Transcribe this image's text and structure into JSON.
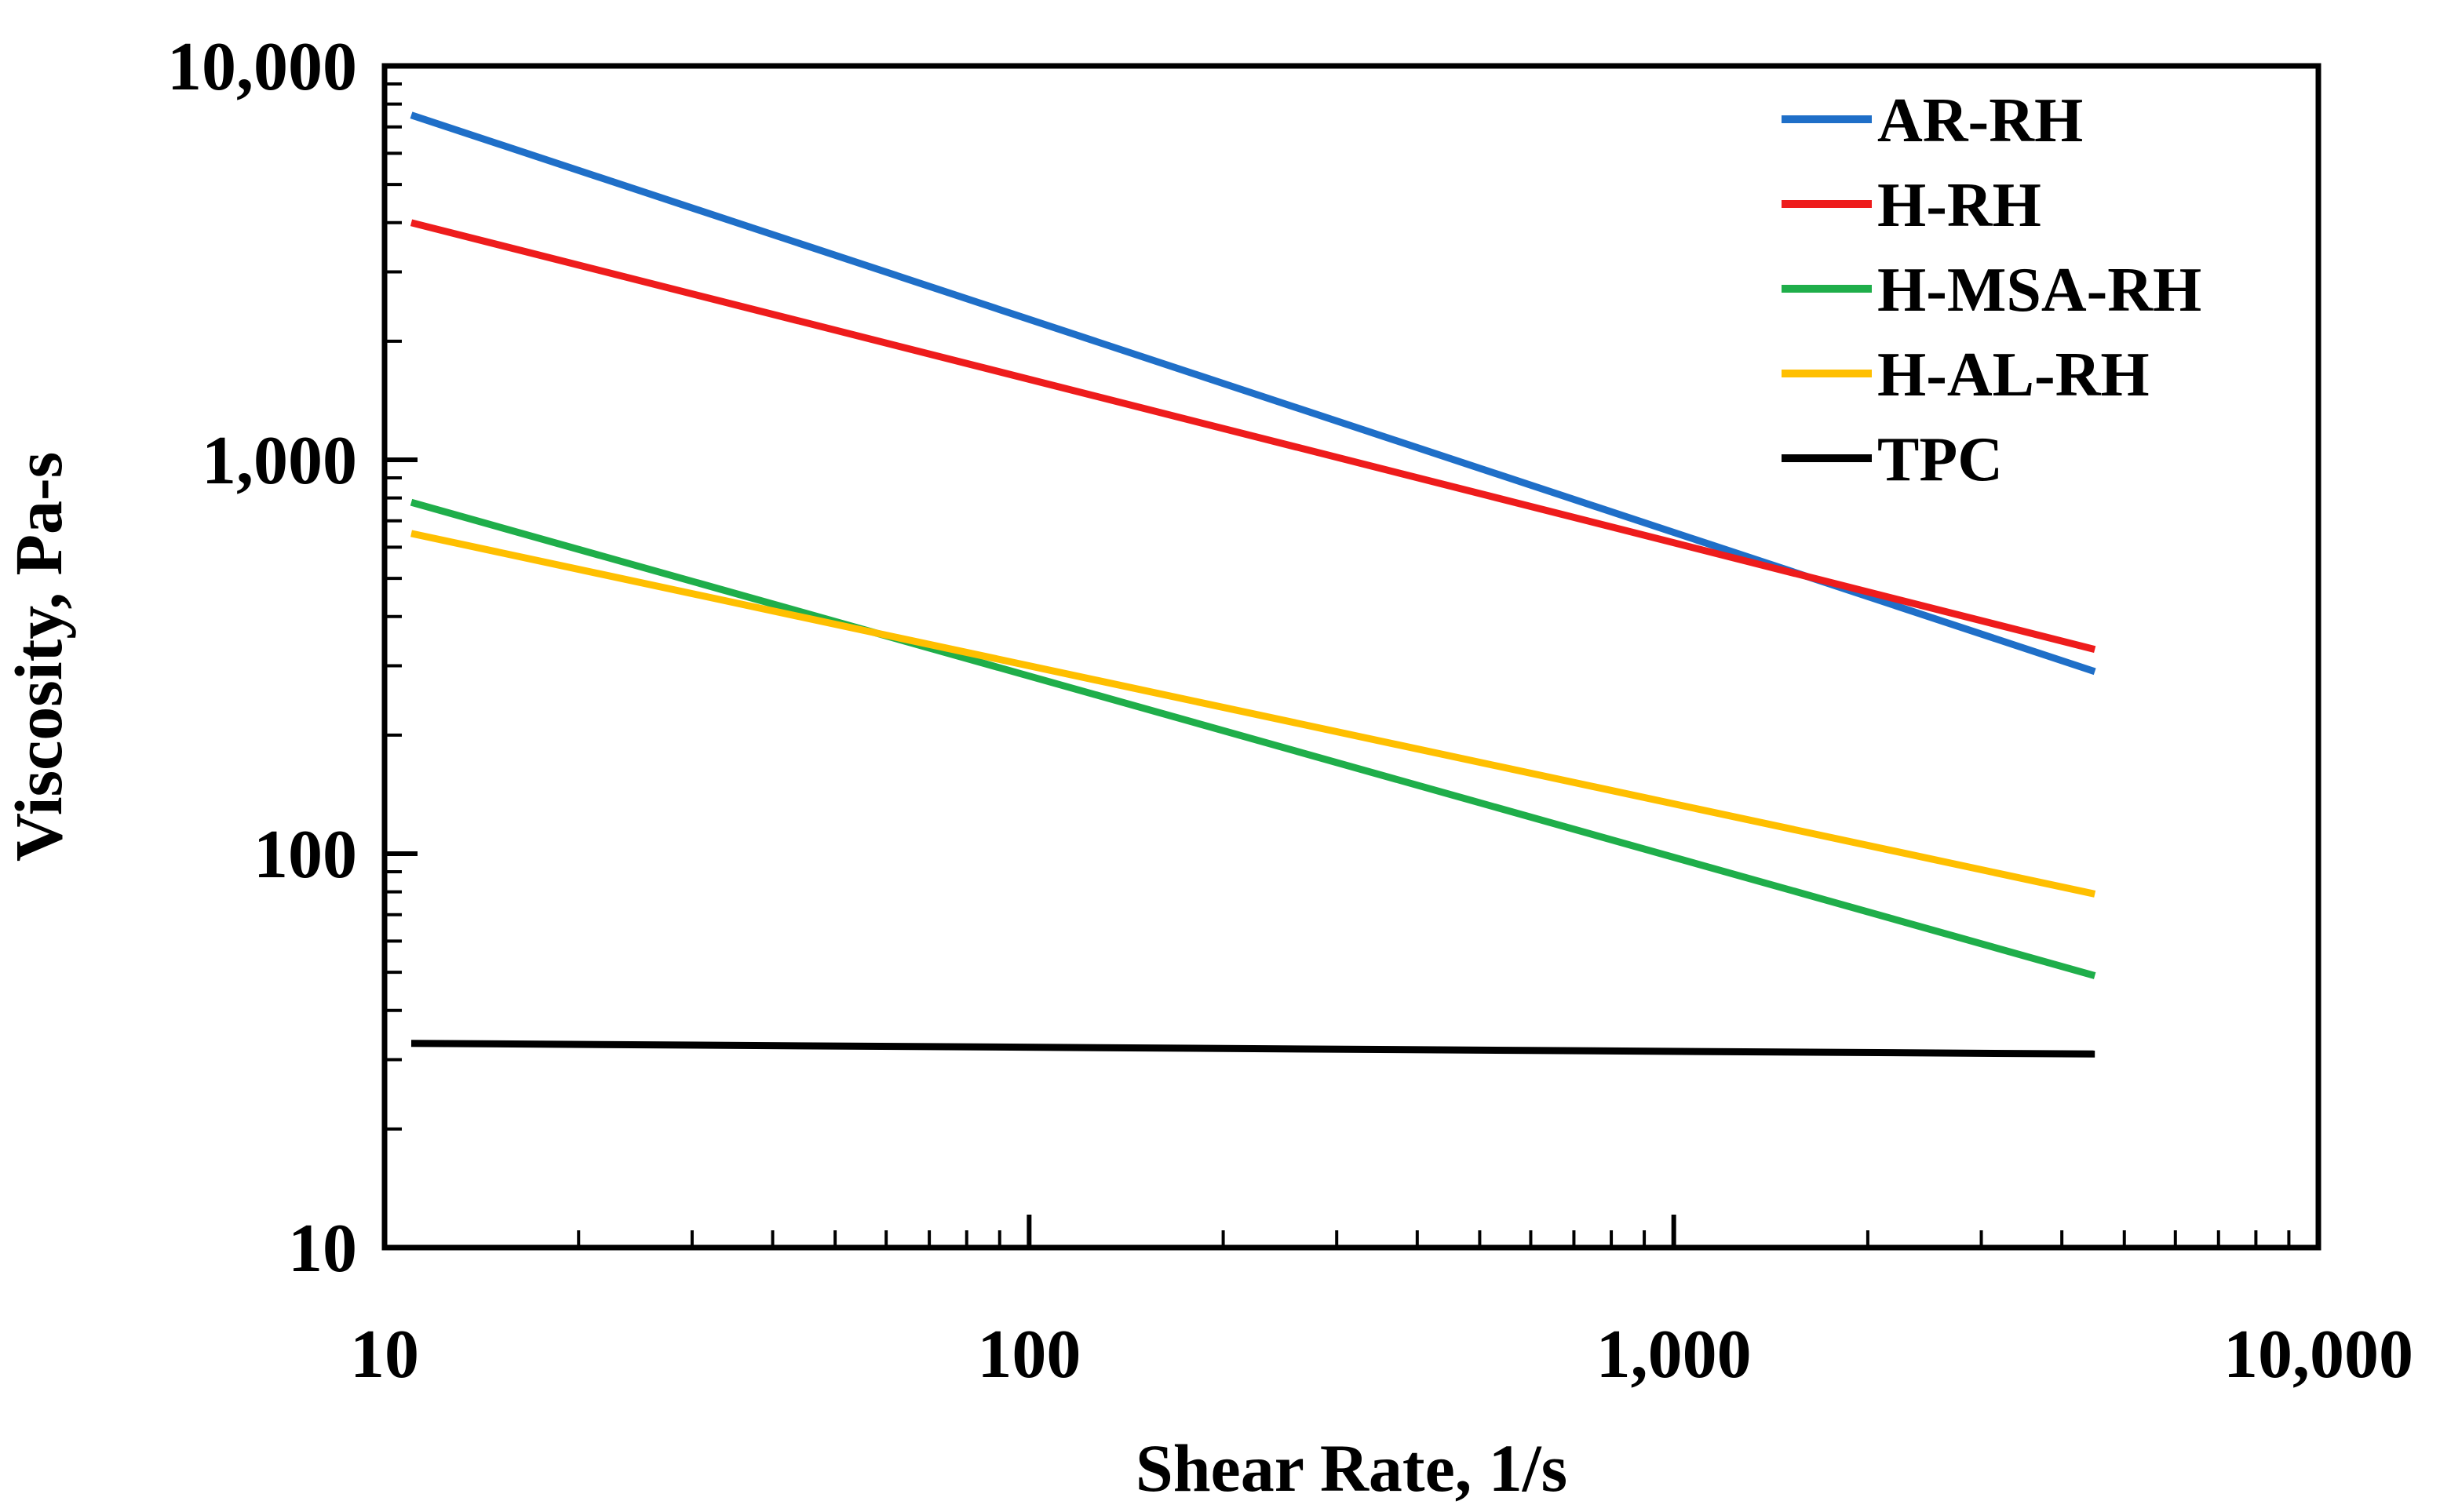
{
  "chart_data": {
    "type": "line",
    "title": "",
    "xlabel": "Shear Rate, 1/s",
    "ylabel": "Viscosity, Pa-s",
    "xscale": "log",
    "yscale": "log",
    "xlim": [
      10,
      10000
    ],
    "ylim": [
      10,
      10000
    ],
    "x_ticks": [
      10,
      100,
      1000,
      10000
    ],
    "x_tick_labels": [
      "10",
      "100",
      "1,000",
      "10,000"
    ],
    "y_ticks": [
      10,
      100,
      1000,
      10000
    ],
    "y_tick_labels": [
      "10",
      "100",
      "1,000",
      "10,000"
    ],
    "grid": false,
    "legend_position": "top-right",
    "series": [
      {
        "name": "AR-RH",
        "color": "#1f6fc8",
        "x": [
          11,
          4500
        ],
        "y": [
          7500,
          290
        ]
      },
      {
        "name": "H-RH",
        "color": "#ee1c1c",
        "x": [
          11,
          4500
        ],
        "y": [
          4000,
          330
        ]
      },
      {
        "name": "H-MSA-RH",
        "color": "#1fae4a",
        "x": [
          11,
          4500
        ],
        "y": [
          780,
          49
        ]
      },
      {
        "name": "H-AL-RH",
        "color": "#ffbf00",
        "x": [
          11,
          4500
        ],
        "y": [
          650,
          79
        ]
      },
      {
        "name": "TPC",
        "color": "#000000",
        "x": [
          11,
          4500
        ],
        "y": [
          33,
          31
        ]
      }
    ]
  }
}
